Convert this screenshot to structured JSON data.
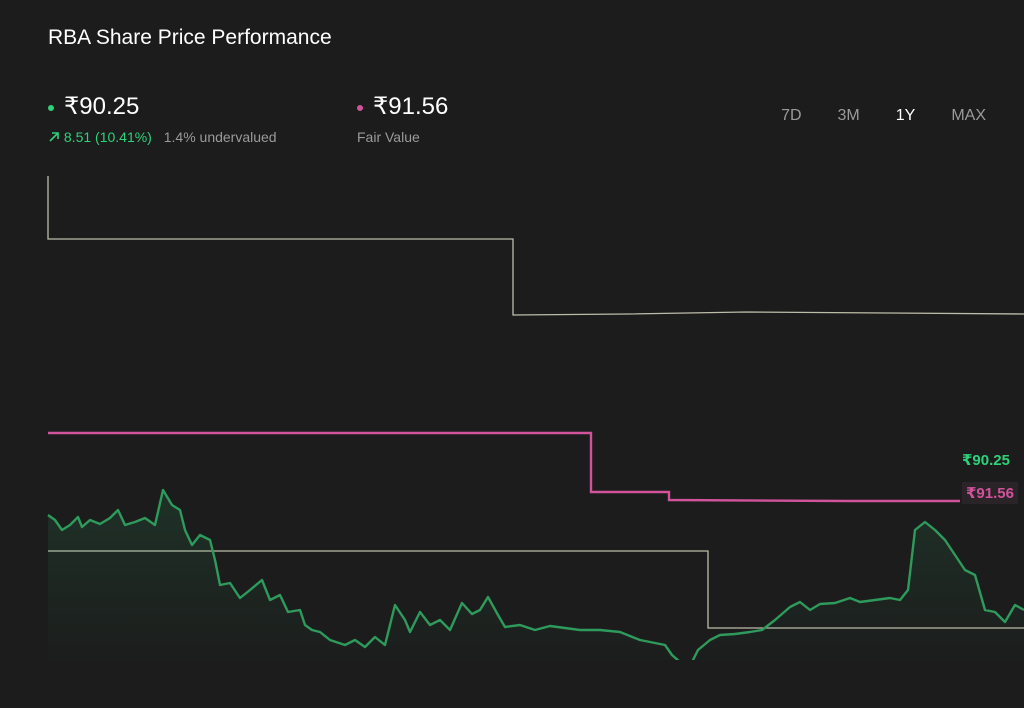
{
  "header": {
    "title": "RBA Share Price Performance"
  },
  "price": {
    "value": "₹90.25",
    "change": "8.51 (10.41%)",
    "note": "1.4% undervalued"
  },
  "fair_value": {
    "value": "₹91.56",
    "label": "Fair Value"
  },
  "ranges": [
    "7D",
    "3M",
    "1Y",
    "MAX"
  ]
}
